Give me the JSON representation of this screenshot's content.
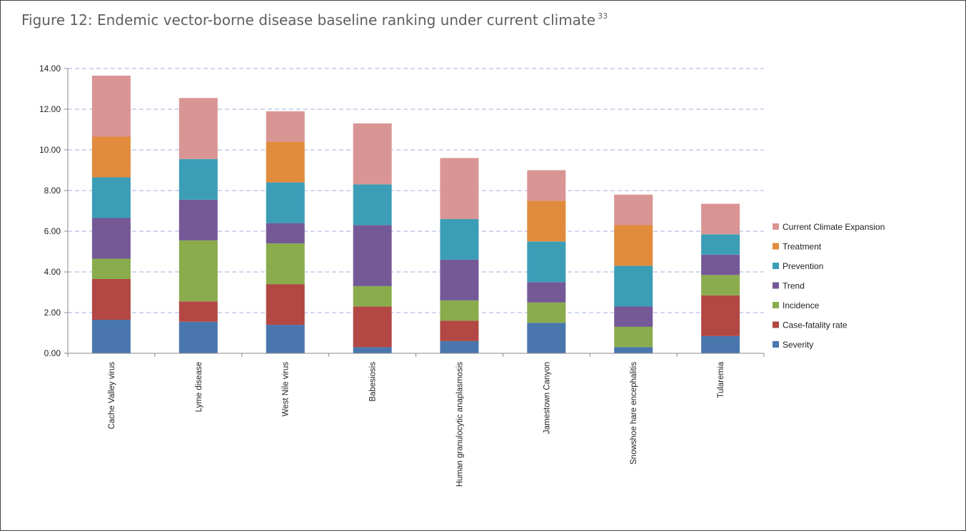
{
  "figure": {
    "title": "Figure 12: Endemic vector-borne disease baseline ranking under current climate",
    "footnote": "33"
  },
  "chart_data": {
    "type": "bar",
    "stacked": true,
    "categories": [
      "Cache Valley virus",
      "Lyme disease",
      "West Nile virus",
      "Babesiosis",
      "Human granulocytic anaplasmosis",
      "Jamestown Canyon",
      "Snowshoe hare encephalitis",
      "Tularemia"
    ],
    "series": [
      {
        "name": "Severity",
        "color": "#4a76ae",
        "values": [
          1.65,
          1.55,
          1.4,
          0.3,
          0.6,
          1.5,
          0.3,
          0.85
        ]
      },
      {
        "name": "Case-fatality rate",
        "color": "#b24743",
        "values": [
          2.0,
          1.0,
          2.0,
          2.0,
          1.0,
          0.0,
          0.0,
          2.0
        ]
      },
      {
        "name": "Incidence",
        "color": "#8aac4d",
        "values": [
          1.0,
          3.0,
          2.0,
          1.0,
          1.0,
          1.0,
          1.0,
          1.0
        ]
      },
      {
        "name": "Trend",
        "color": "#755997",
        "values": [
          2.0,
          2.0,
          1.0,
          3.0,
          2.0,
          1.0,
          1.0,
          1.0
        ]
      },
      {
        "name": "Prevention",
        "color": "#3c9db7",
        "values": [
          2.0,
          2.0,
          2.0,
          2.0,
          2.0,
          2.0,
          2.0,
          1.0
        ]
      },
      {
        "name": "Treatment",
        "color": "#e18b3c",
        "values": [
          2.0,
          0.0,
          2.0,
          0.0,
          0.0,
          2.0,
          2.0,
          0.0
        ]
      },
      {
        "name": "Current Climate Expansion",
        "color": "#d99594",
        "values": [
          3.0,
          3.0,
          1.5,
          3.0,
          3.0,
          1.5,
          1.5,
          1.5
        ]
      }
    ],
    "ylim": [
      0,
      14
    ],
    "yticks": [
      "0.00",
      "2.00",
      "4.00",
      "6.00",
      "8.00",
      "10.00",
      "12.00",
      "14.00"
    ],
    "ytick_values": [
      0,
      2,
      4,
      6,
      8,
      10,
      12,
      14
    ],
    "grid": true,
    "legend_position": "right",
    "xlabel": "",
    "ylabel": ""
  }
}
